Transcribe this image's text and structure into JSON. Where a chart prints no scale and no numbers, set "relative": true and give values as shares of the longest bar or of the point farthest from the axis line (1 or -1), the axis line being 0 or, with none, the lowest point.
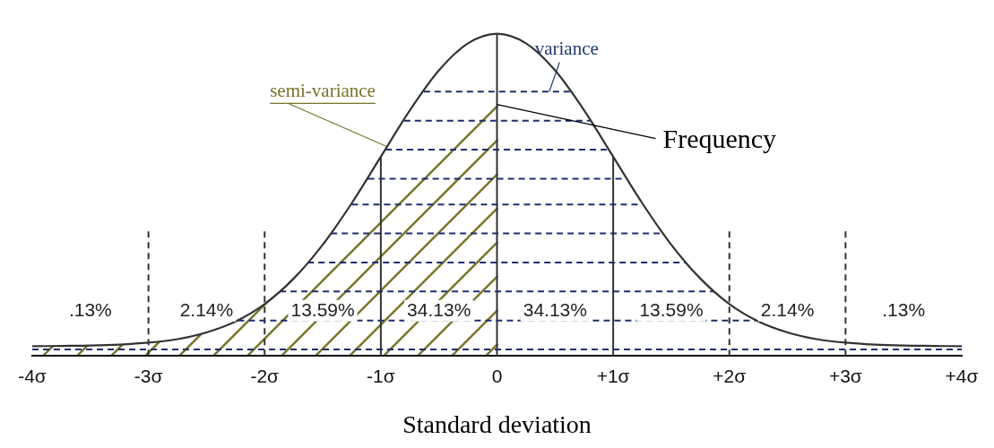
{
  "chart_data": {
    "type": "line",
    "xlabel": "Standard deviation",
    "relative": true,
    "color": "#333333",
    "marker": "none",
    "line_style": "solid",
    "grid": false,
    "legend": false,
    "x": [
      -4,
      -3.75,
      -3.5,
      -3.25,
      -3,
      -2.75,
      -2.5,
      -2.25,
      -2,
      -1.75,
      -1.5,
      -1.25,
      -1,
      -0.75,
      -0.5,
      -0.25,
      0,
      0.25,
      0.5,
      0.75,
      1,
      1.25,
      1.5,
      1.75,
      2,
      2.25,
      2.5,
      2.75,
      3,
      3.25,
      3.5,
      3.75,
      4
    ],
    "values": [
      0.03,
      0.031,
      0.032,
      0.035,
      0.041,
      0.052,
      0.073,
      0.107,
      0.161,
      0.24,
      0.345,
      0.474,
      0.618,
      0.762,
      0.886,
      0.97,
      1.0,
      0.97,
      0.886,
      0.762,
      0.618,
      0.474,
      0.345,
      0.24,
      0.161,
      0.107,
      0.073,
      0.052,
      0.041,
      0.035,
      0.032,
      0.031,
      0.03
    ],
    "xlim": [
      -4,
      4
    ],
    "xticks": [
      {
        "value": -4,
        "label": "-4σ"
      },
      {
        "value": -3,
        "label": "-3σ"
      },
      {
        "value": -2,
        "label": "-2σ"
      },
      {
        "value": -1,
        "label": "-1σ"
      },
      0,
      {
        "value": 1,
        "label": "+1σ"
      },
      {
        "value": 2,
        "label": "+2σ"
      },
      {
        "value": 3,
        "label": "+3σ"
      },
      {
        "value": 4,
        "label": "+4σ"
      }
    ],
    "ref_lines": [
      {
        "axis": "x",
        "value": -3,
        "line_style": "dashed",
        "color": "#333333"
      },
      {
        "axis": "x",
        "value": -2,
        "line_style": "dashed",
        "color": "#333333"
      },
      {
        "axis": "x",
        "value": -1,
        "line_style": "solid",
        "color": "#333333"
      },
      {
        "axis": "x",
        "value": 0,
        "line_style": "solid",
        "color": "#333333"
      },
      {
        "axis": "x",
        "value": 1,
        "line_style": "solid",
        "color": "#333333"
      },
      {
        "axis": "x",
        "value": 2,
        "line_style": "dashed",
        "color": "#333333"
      },
      {
        "axis": "x",
        "value": 3,
        "line_style": "dashed",
        "color": "#333333"
      },
      {
        "axis": "y",
        "value": 0.02,
        "line_style": "dashed",
        "color": "#1f2f6e"
      },
      {
        "axis": "y",
        "value": 0.11,
        "line_style": "dashed",
        "color": "#1f2f6e"
      },
      {
        "axis": "y",
        "value": 0.2,
        "line_style": "dashed",
        "color": "#1f2f6e"
      },
      {
        "axis": "y",
        "value": 0.29,
        "line_style": "dashed",
        "color": "#1f2f6e"
      },
      {
        "axis": "y",
        "value": 0.38,
        "line_style": "dashed",
        "color": "#1f2f6e"
      },
      {
        "axis": "y",
        "value": 0.47,
        "line_style": "dashed",
        "color": "#1f2f6e"
      },
      {
        "axis": "y",
        "value": 0.55,
        "line_style": "dashed",
        "color": "#1f2f6e"
      },
      {
        "axis": "y",
        "value": 0.64,
        "line_style": "dashed",
        "color": "#1f2f6e"
      },
      {
        "axis": "y",
        "value": 0.73,
        "line_style": "dashed",
        "color": "#1f2f6e"
      },
      {
        "axis": "y",
        "value": 0.82,
        "line_style": "dashed",
        "color": "#1f2f6e"
      }
    ],
    "annotations": [
      ".13%",
      "2.14%",
      "13.59%",
      "34.13%",
      "34.13%",
      "13.59%",
      "2.14%",
      ".13%",
      {
        "text": "Frequency",
        "x": 0,
        "y": 0.78
      },
      "semi-variance",
      "variance"
    ]
  }
}
